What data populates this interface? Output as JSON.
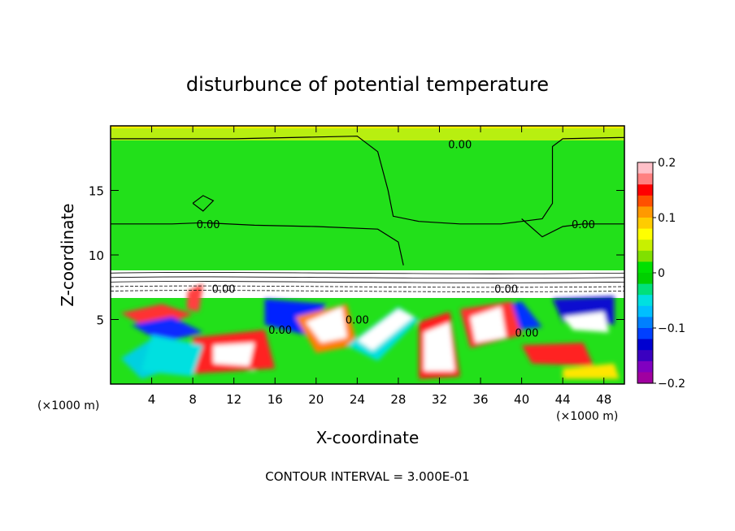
{
  "chart_data": {
    "type": "heatmap",
    "title": "disturbunce of potential temperature",
    "xlabel": "X-coordinate",
    "ylabel": "Z-coordinate",
    "x_unit": "(×1000 m)",
    "z_unit": "(×1000 m)",
    "xlim": [
      0,
      50
    ],
    "ylim": [
      0,
      20
    ],
    "x_ticks": [
      4,
      8,
      12,
      16,
      20,
      24,
      28,
      32,
      36,
      40,
      44,
      48
    ],
    "x_tick_labels": [
      "4",
      "8",
      "12",
      "16",
      "20",
      "24",
      "28",
      "32",
      "36",
      "40",
      "44",
      "48"
    ],
    "y_ticks": [
      5,
      10,
      15
    ],
    "y_tick_labels": [
      "5",
      "10",
      "15"
    ],
    "colorbar": {
      "range": [
        -0.2,
        0.2
      ],
      "tick_values": [
        0.2,
        0.1,
        0,
        -0.1,
        -0.2
      ],
      "tick_labels": [
        "0.2",
        "0.1",
        "0",
        "-0.1",
        "-0.2"
      ],
      "colors": [
        "#ffc0c8",
        "#ff8080",
        "#ff0000",
        "#ff5000",
        "#ff9900",
        "#ffcc00",
        "#ffff00",
        "#c8f000",
        "#80e000",
        "#00e000",
        "#00d000",
        "#00e07a",
        "#00e0e0",
        "#00bfff",
        "#0080ff",
        "#0040ff",
        "#0000d0",
        "#3a00c0",
        "#8000c0",
        "#a000a0"
      ]
    },
    "contour_labels": [
      {
        "text": "0.00",
        "x": 34.0,
        "z": 18.6
      },
      {
        "text": "0.00",
        "x": 9.5,
        "z": 12.4
      },
      {
        "text": "0.00",
        "x": 46.0,
        "z": 12.4
      },
      {
        "text": "0.00",
        "x": 11.0,
        "z": 7.4
      },
      {
        "text": "0.00",
        "x": 38.5,
        "z": 7.4
      },
      {
        "text": "0.00",
        "x": 24.0,
        "z": 5.0
      },
      {
        "text": "0.00",
        "x": 16.5,
        "z": 4.2
      },
      {
        "text": "0.00",
        "x": 40.5,
        "z": 4.0
      }
    ],
    "regions": {
      "upper_layer": {
        "z_from": 8.5,
        "z_to": 19.8,
        "value": 0.0
      },
      "top_strip": {
        "z_from": 19.2,
        "z_to": 19.9,
        "value": 0.06
      },
      "inversion_band": {
        "z_from": 7.0,
        "z_to": 8.8
      },
      "turbulent_boundary_layer": {
        "z_from": 0.0,
        "z_to": 7.0,
        "value_min": -0.2,
        "value_max": 0.2
      }
    },
    "grid": false
  },
  "footer": {
    "contour_interval": "CONTOUR INTERVAL = 3.000E-01"
  }
}
